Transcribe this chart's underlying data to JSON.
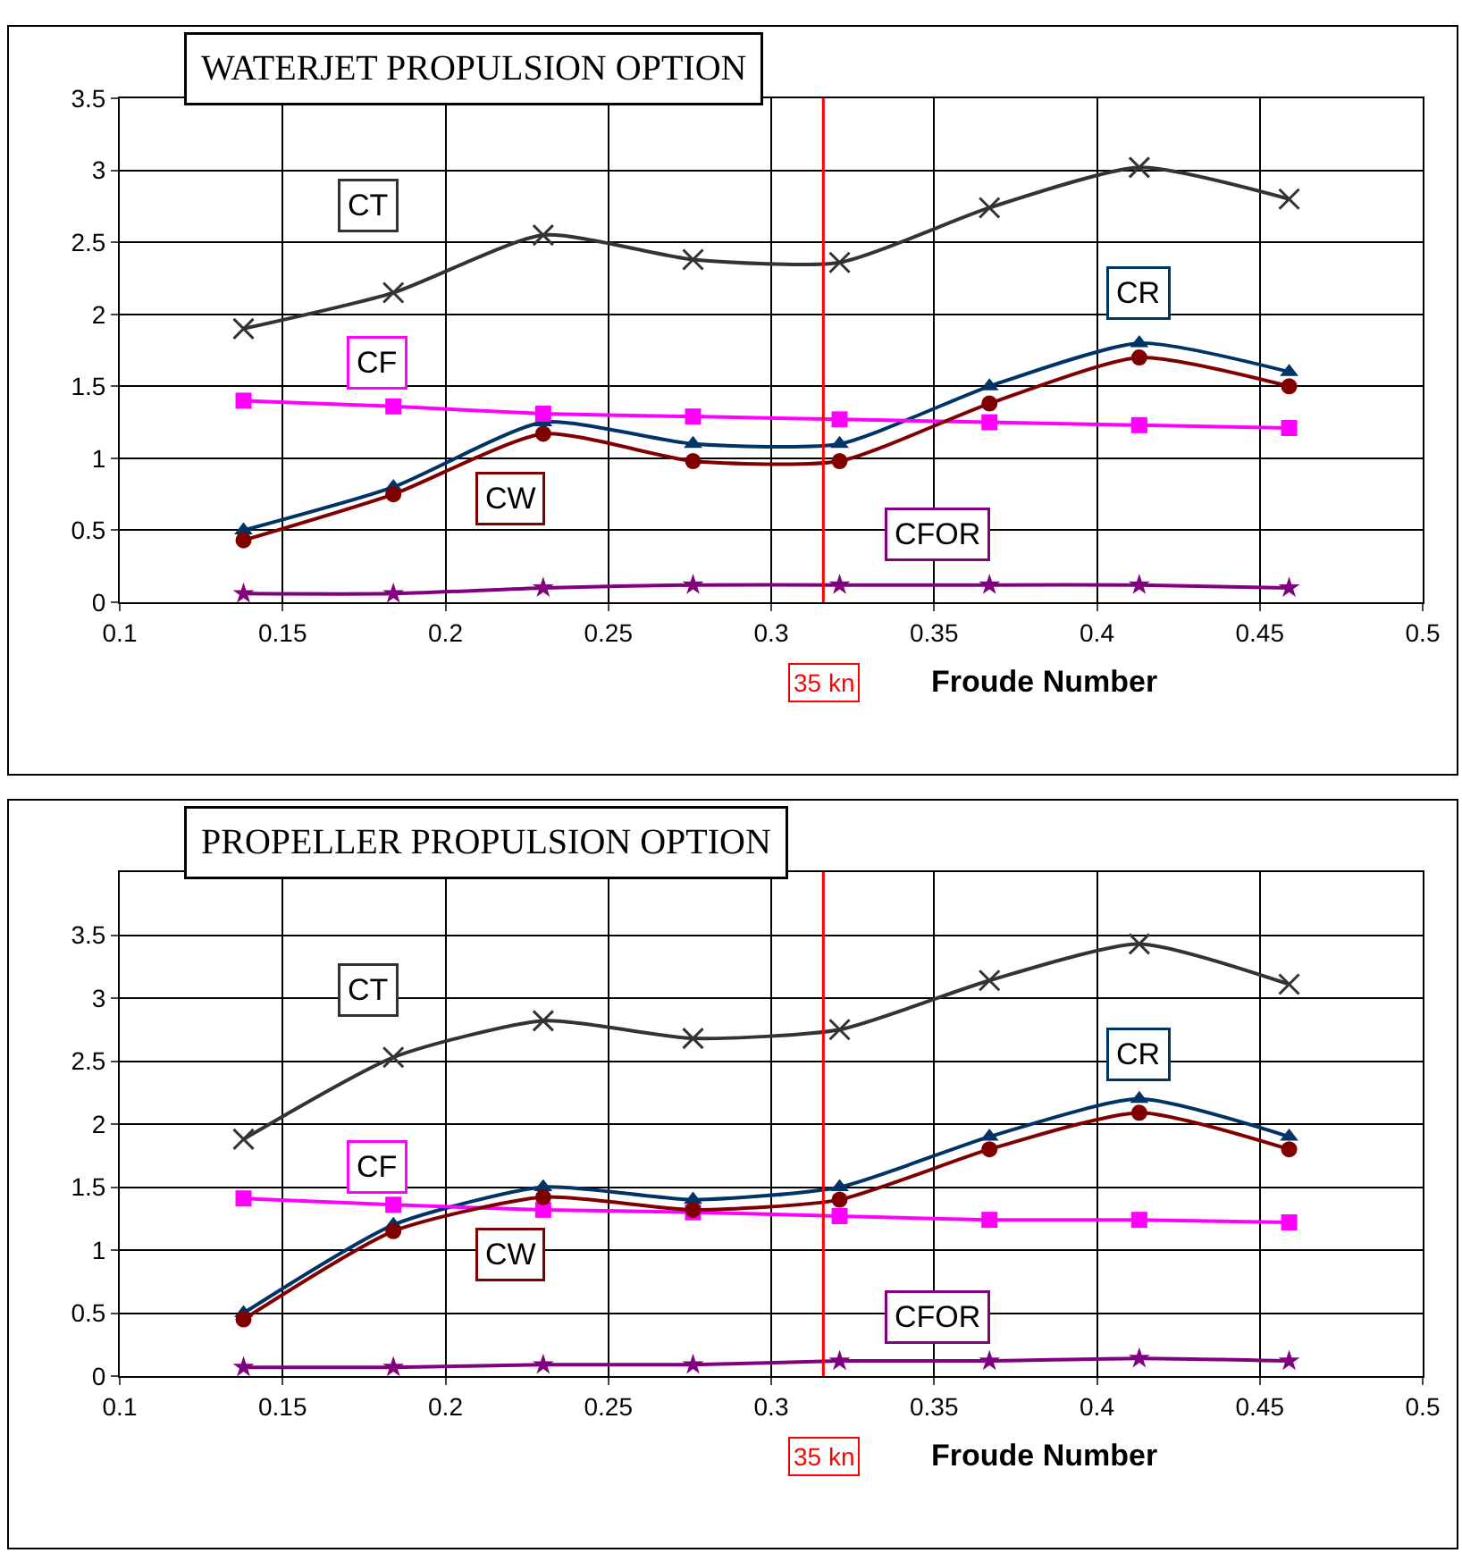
{
  "chart_data": [
    {
      "type": "line",
      "title": "WATERJET PROPULSION OPTION",
      "xlabel": "Froude Number",
      "x": [
        0.138,
        0.184,
        0.23,
        0.276,
        0.321,
        0.367,
        0.413,
        0.459
      ],
      "xlim": [
        0.1,
        0.5
      ],
      "xticks": [
        0.1,
        0.15,
        0.2,
        0.25,
        0.3,
        0.35,
        0.4,
        0.45,
        0.5
      ],
      "ylim": [
        0,
        3.5
      ],
      "yticks": [
        0,
        0.5,
        1,
        1.5,
        2,
        2.5,
        3,
        3.5
      ],
      "grid": true,
      "legend": false,
      "ref_lines": [
        {
          "axis": "x",
          "value": 0.316,
          "label": "35 kn",
          "color": "#ff0000"
        }
      ],
      "series": [
        {
          "name": "CT",
          "color": "#333333",
          "marker": "cross",
          "values": [
            1.9,
            2.15,
            2.55,
            2.38,
            2.36,
            2.74,
            3.02,
            2.8
          ]
        },
        {
          "name": "CR",
          "color": "#003366",
          "marker": "triangle",
          "values": [
            0.5,
            0.8,
            1.25,
            1.1,
            1.1,
            1.5,
            1.8,
            1.6
          ]
        },
        {
          "name": "CF",
          "color": "#ff00ff",
          "marker": "square",
          "values": [
            1.4,
            1.36,
            1.31,
            1.29,
            1.27,
            1.25,
            1.23,
            1.21
          ]
        },
        {
          "name": "CW",
          "color": "#800000",
          "marker": "circle",
          "values": [
            0.43,
            0.75,
            1.17,
            0.98,
            0.98,
            1.38,
            1.7,
            1.5
          ]
        },
        {
          "name": "CFOR",
          "color": "#800080",
          "marker": "star",
          "values": [
            0.06,
            0.06,
            0.1,
            0.12,
            0.12,
            0.12,
            0.12,
            0.1
          ]
        }
      ]
    },
    {
      "type": "line",
      "title": "PROPELLER PROPULSION OPTION",
      "xlabel": "Froude Number",
      "x": [
        0.138,
        0.184,
        0.23,
        0.276,
        0.321,
        0.367,
        0.413,
        0.459
      ],
      "xlim": [
        0.1,
        0.5
      ],
      "xticks": [
        0.1,
        0.15,
        0.2,
        0.25,
        0.3,
        0.35,
        0.4,
        0.45,
        0.5
      ],
      "ylim": [
        0,
        4
      ],
      "yticks": [
        0,
        0.5,
        1,
        1.5,
        2,
        2.5,
        3,
        3.5
      ],
      "grid": true,
      "legend": false,
      "ref_lines": [
        {
          "axis": "x",
          "value": 0.316,
          "label": "35 kn",
          "color": "#ff0000"
        }
      ],
      "series": [
        {
          "name": "CT",
          "color": "#333333",
          "marker": "cross",
          "values": [
            1.88,
            2.53,
            2.82,
            2.68,
            2.75,
            3.14,
            3.43,
            3.11
          ]
        },
        {
          "name": "CR",
          "color": "#003366",
          "marker": "triangle",
          "values": [
            0.5,
            1.2,
            1.5,
            1.4,
            1.5,
            1.9,
            2.2,
            1.9
          ]
        },
        {
          "name": "CF",
          "color": "#ff00ff",
          "marker": "square",
          "values": [
            1.41,
            1.36,
            1.32,
            1.3,
            1.27,
            1.24,
            1.24,
            1.22
          ]
        },
        {
          "name": "CW",
          "color": "#800000",
          "marker": "circle",
          "values": [
            0.45,
            1.15,
            1.42,
            1.32,
            1.4,
            1.8,
            2.09,
            1.8
          ]
        },
        {
          "name": "CFOR",
          "color": "#800080",
          "marker": "star",
          "values": [
            0.07,
            0.07,
            0.09,
            0.09,
            0.12,
            0.12,
            0.14,
            0.12
          ]
        }
      ]
    }
  ]
}
